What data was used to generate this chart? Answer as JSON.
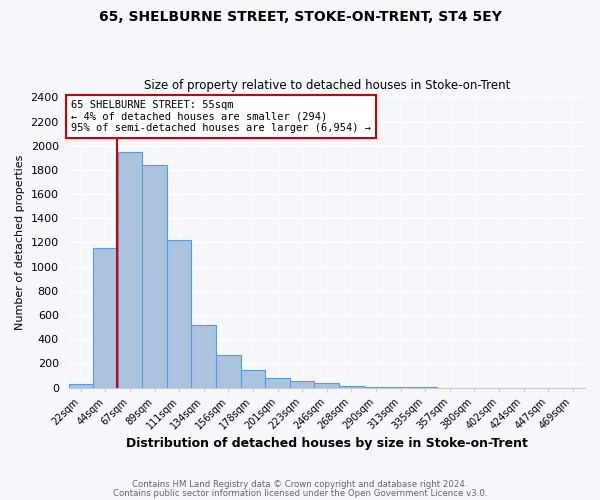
{
  "title": "65, SHELBURNE STREET, STOKE-ON-TRENT, ST4 5EY",
  "subtitle": "Size of property relative to detached houses in Stoke-on-Trent",
  "xlabel": "Distribution of detached houses by size in Stoke-on-Trent",
  "ylabel": "Number of detached properties",
  "bin_labels": [
    "22sqm",
    "44sqm",
    "67sqm",
    "89sqm",
    "111sqm",
    "134sqm",
    "156sqm",
    "178sqm",
    "201sqm",
    "223sqm",
    "246sqm",
    "268sqm",
    "290sqm",
    "313sqm",
    "335sqm",
    "357sqm",
    "380sqm",
    "402sqm",
    "424sqm",
    "447sqm",
    "469sqm"
  ],
  "bar_values": [
    25,
    1155,
    1950,
    1840,
    1220,
    520,
    265,
    148,
    78,
    50,
    38,
    12,
    5,
    2,
    1,
    0,
    0,
    0,
    0,
    0,
    0
  ],
  "bar_color": "#aac4e0",
  "bar_edge_color": "#5b9bd5",
  "property_line_color": "#cc0000",
  "annotation_text": "65 SHELBURNE STREET: 55sqm\n← 4% of detached houses are smaller (294)\n95% of semi-detached houses are larger (6,954) →",
  "annotation_box_color": "#ffffff",
  "annotation_box_edge_color": "#cc0000",
  "ylim": [
    0,
    2400
  ],
  "yticks": [
    0,
    200,
    400,
    600,
    800,
    1000,
    1200,
    1400,
    1600,
    1800,
    2000,
    2200,
    2400
  ],
  "footer_line1": "Contains HM Land Registry data © Crown copyright and database right 2024.",
  "footer_line2": "Contains public sector information licensed under the Open Government Licence v3.0.",
  "bg_color": "#f5f7fb",
  "plot_bg_color": "#f5f7fb",
  "line_x_index": 1.48
}
